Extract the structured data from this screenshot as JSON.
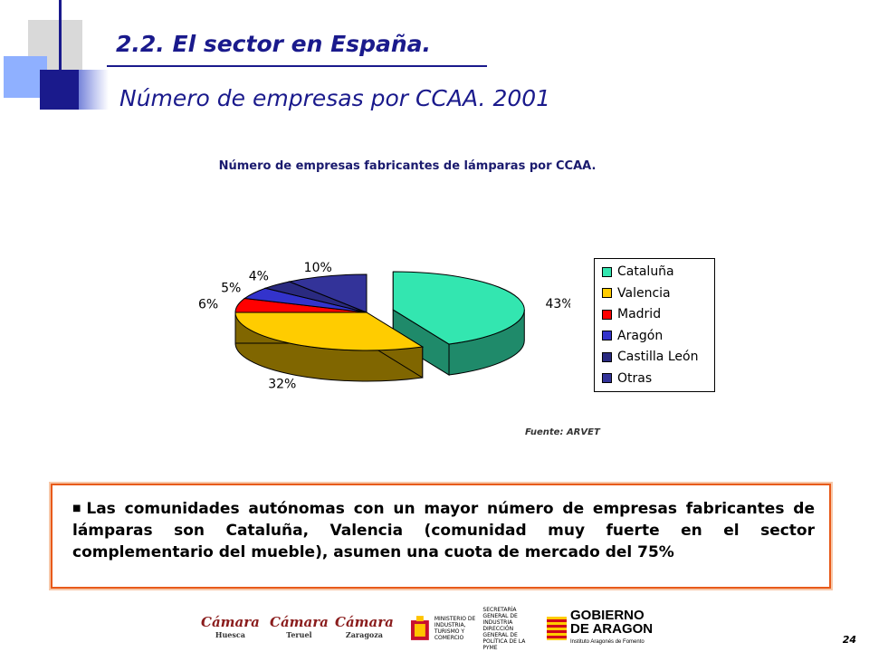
{
  "slide": {
    "title": "2.2. El sector en España.",
    "subtitle": "Número de empresas por CCAA. 2001",
    "source": "Fuente: ARVET",
    "note_text": "Las comunidades autónomas con un mayor número de empresas fabricantes de lámparas son Cataluña, Valencia (comunidad muy fuerte en el sector complementario del mueble), asumen una cuota de mercado del 75%",
    "page_number": "24"
  },
  "footer": {
    "camara1": "Cámara",
    "camara1_city": "Huesca",
    "camara2": "Cámara",
    "camara2_city": "Teruel",
    "camara3": "Cámara",
    "camara3_city": "Zaragoza",
    "ministerio": "MINISTERIO DE INDUSTRIA, TURISMO Y COMERCIO",
    "secretaria": "SECRETARÍA GENERAL DE INDUSTRIA",
    "direccion": "DIRECCIÓN GENERAL DE POLÍTICA DE LA PYME",
    "gobierno": "GOBIERNO",
    "aragon": "DE ARAGON",
    "instituto": "Instituto Aragonés de Fomento"
  },
  "chart_data": {
    "type": "pie",
    "title": "Número de empresas fabricantes de  lámparas por CCAA.",
    "legend_position": "right",
    "categories": [
      "Cataluña",
      "Valencia",
      "Madrid",
      "Aragón",
      "Castilla León",
      "Otras"
    ],
    "values": [
      43,
      32,
      6,
      5,
      4,
      10
    ],
    "labels": [
      "43%",
      "32%",
      "6%",
      "5%",
      "4%",
      "10%"
    ],
    "colors": [
      "#33e6b0",
      "#ffcc00",
      "#ff0000",
      "#3333cc",
      "#2a2a80",
      "#333399"
    ],
    "side_colors": [
      "#1f8a6a",
      "#806600",
      "#800000",
      "#1a1a66",
      "#151540",
      "#1a1a4d"
    ]
  }
}
